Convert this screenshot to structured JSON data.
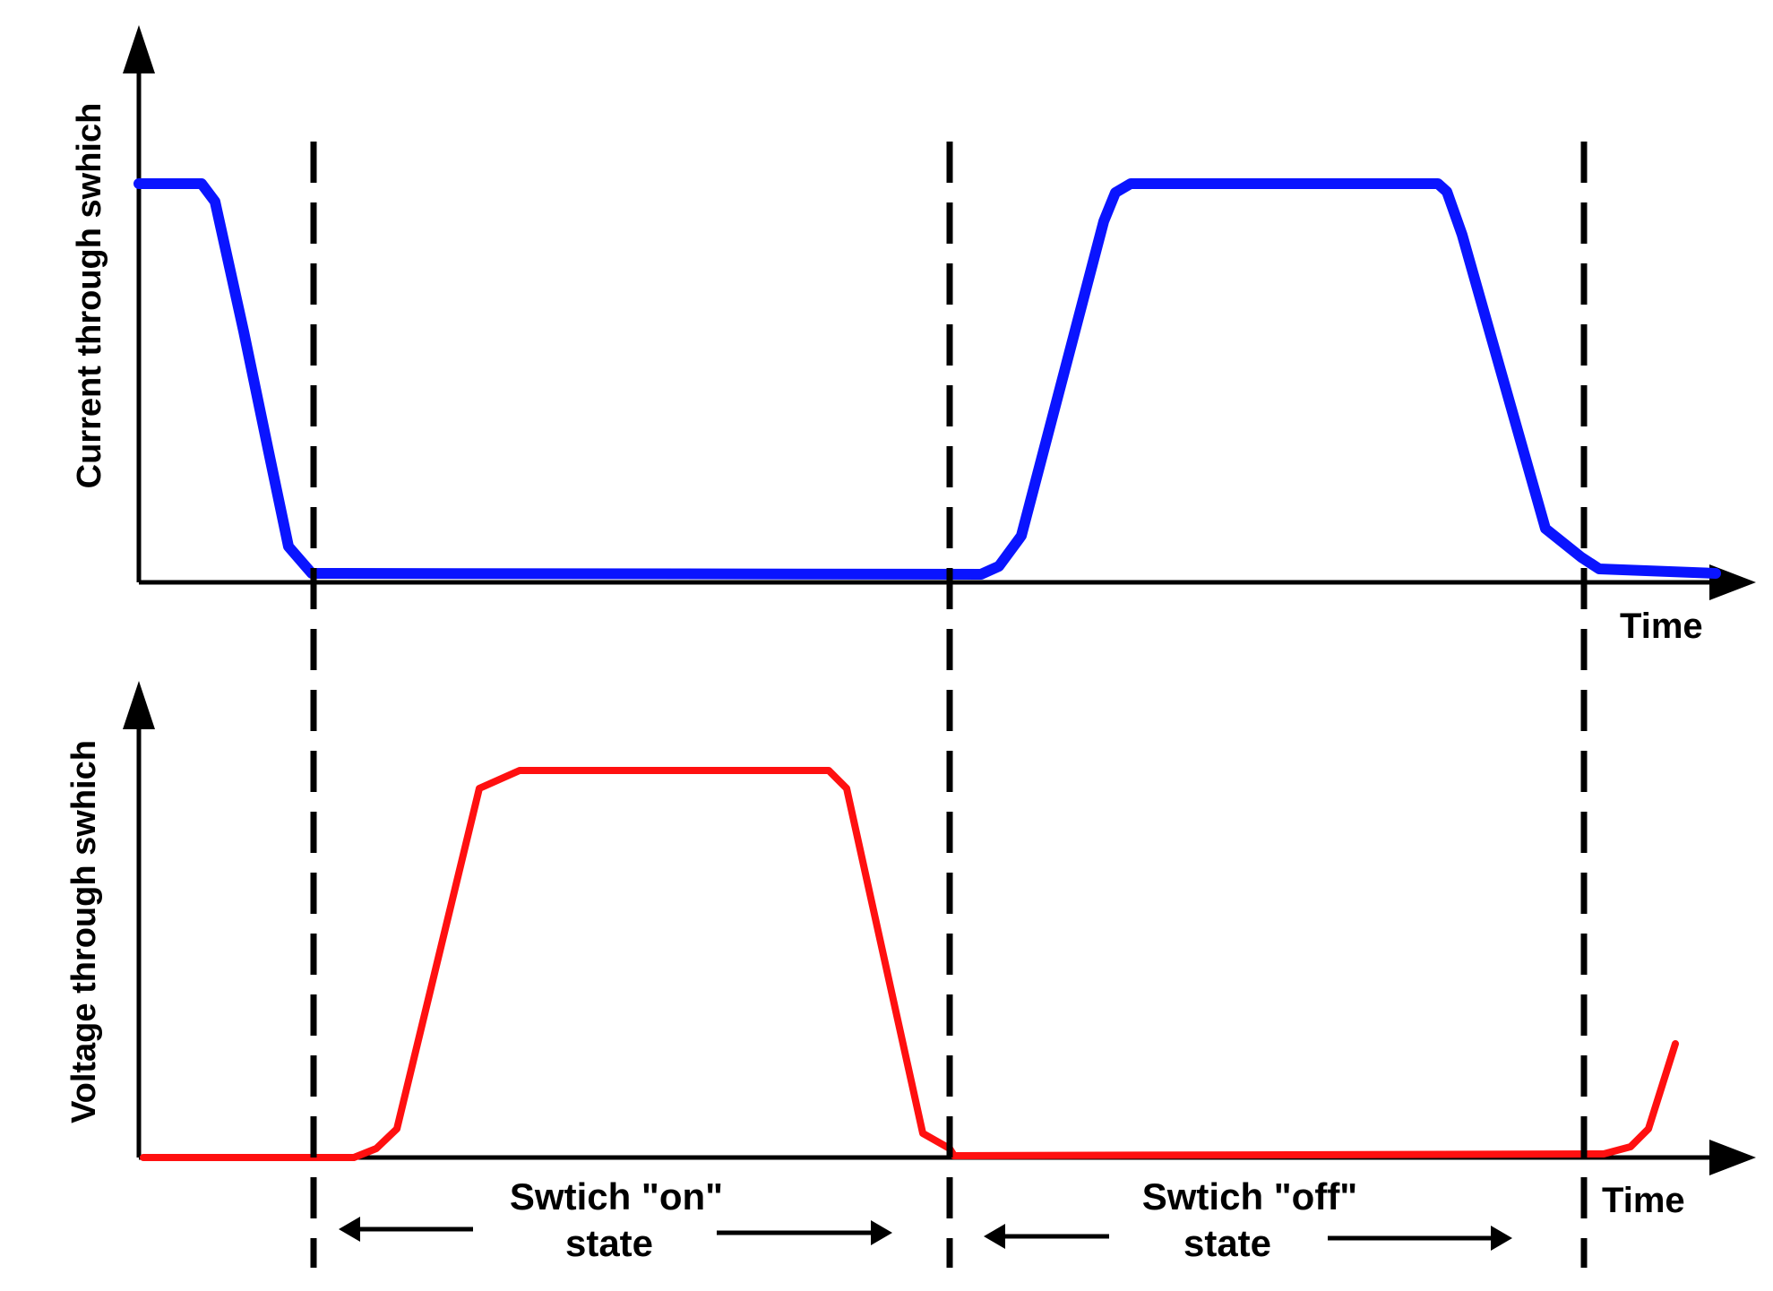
{
  "diagram": {
    "top_panel": {
      "ylabel": "Current through swhich",
      "xlabel": "Time",
      "trace_color": "#0a14ff"
    },
    "bottom_panel": {
      "ylabel": "Voltage through swhich",
      "xlabel": "Time",
      "trace_color": "#ff1010"
    },
    "on_state": {
      "line1": "Swtich \"on\"",
      "line2": "state"
    },
    "off_state": {
      "line1": "Swtich \"off\"",
      "line2": "state"
    }
  }
}
